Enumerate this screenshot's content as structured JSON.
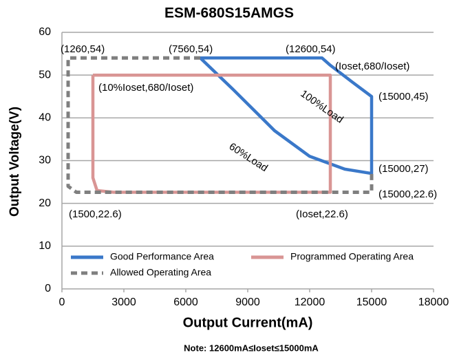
{
  "chart_data": {
    "type": "line",
    "title": "ESM-680S15AMGS",
    "x_label": "Output Current(mA)",
    "y_label": "Output Voltage(V)",
    "note": "Note:  12600mA≤Ioset≤15000mA",
    "xlim": [
      0,
      18000
    ],
    "xticks": [
      0,
      3000,
      6000,
      9000,
      12000,
      15000,
      18000
    ],
    "ylim": [
      0,
      60
    ],
    "yticks": [
      0,
      10,
      20,
      30,
      40,
      50,
      60
    ],
    "grid": true,
    "series": [
      {
        "name": "Good Performance Area",
        "color": "#3a78c9",
        "dashed": false,
        "x": [
          6700,
          12600,
          13000,
          14000,
          15000,
          15000,
          13700,
          12000,
          10300,
          8300,
          6700
        ],
        "values": [
          54,
          54,
          52.3,
          48.6,
          45,
          27,
          28,
          31,
          37,
          46.6,
          54
        ]
      },
      {
        "name": "Programmed Operating Area",
        "color": "#d99594",
        "dashed": false,
        "x": [
          1500,
          13000,
          13000,
          2500,
          1700,
          1500,
          1500
        ],
        "values": [
          50,
          50,
          22.6,
          22.6,
          23,
          26,
          50
        ]
      },
      {
        "name": "Allowed Operating Area",
        "color": "#7f7f7f",
        "dashed": true,
        "x": [
          6700,
          300,
          300,
          700,
          15000,
          15000
        ],
        "values": [
          54,
          54,
          24,
          22.6,
          22.6,
          27
        ]
      }
    ],
    "annotations": [
      "(1260,54)",
      "(7560,54)",
      "(12600,54)",
      "(Ioset,680/Ioset)",
      "(10%Ioset,680/Ioset)",
      "100%Load",
      "(15000,45)",
      "60%Load",
      "(15000,27)",
      "(15000,22.6)",
      "(1500,22.6)",
      "(Ioset,22.6)"
    ]
  }
}
